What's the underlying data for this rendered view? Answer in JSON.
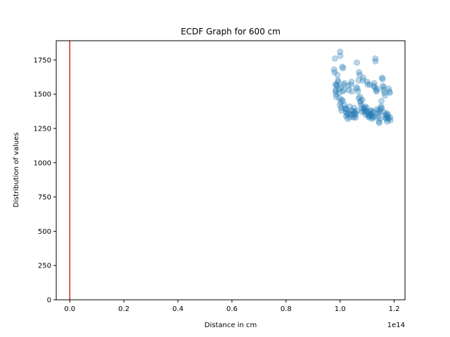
{
  "chart_data": {
    "type": "scatter",
    "title": "ECDF Graph for 600 cm",
    "xlabel": "Distance in cm",
    "ylabel": "Distribution of values",
    "x_offset_label": "1e14",
    "xlim": [
      -0.05,
      1.24
    ],
    "ylim": [
      0,
      1890
    ],
    "x_ticks": [
      0.0,
      0.2,
      0.4,
      0.6,
      0.8,
      1.0,
      1.2
    ],
    "x_tick_labels": [
      "0.0",
      "0.2",
      "0.4",
      "0.6",
      "0.8",
      "1.0",
      "1.2"
    ],
    "y_ticks": [
      0,
      250,
      500,
      750,
      1000,
      1250,
      1500,
      1750
    ],
    "y_tick_labels": [
      "0",
      "250",
      "500",
      "750",
      "1000",
      "1250",
      "1500",
      "1750"
    ],
    "grid": false,
    "vline": {
      "x": 0,
      "color": "#d62728"
    },
    "point_color": "#1f77b4",
    "points": [
      [
        0.978,
        1680
      ],
      [
        0.979,
        1660
      ],
      [
        0.981,
        1760
      ],
      [
        0.982,
        1570
      ],
      [
        0.983,
        1520
      ],
      [
        0.985,
        1500
      ],
      [
        0.986,
        1480
      ],
      [
        0.988,
        1560
      ],
      [
        0.99,
        1640
      ],
      [
        0.992,
        1600
      ],
      [
        0.995,
        1540
      ],
      [
        0.997,
        1470
      ],
      [
        0.999,
        1420
      ],
      [
        1.0,
        1810
      ],
      [
        1.001,
        1780
      ],
      [
        1.003,
        1550
      ],
      [
        1.004,
        1400
      ],
      [
        1.005,
        1380
      ],
      [
        1.006,
        1460
      ],
      [
        1.008,
        1700
      ],
      [
        1.009,
        1520
      ],
      [
        1.011,
        1690
      ],
      [
        1.013,
        1570
      ],
      [
        1.015,
        1530
      ],
      [
        1.017,
        1580
      ],
      [
        1.019,
        1400
      ],
      [
        1.021,
        1370
      ],
      [
        1.022,
        1340
      ],
      [
        1.024,
        1390
      ],
      [
        1.026,
        1350
      ],
      [
        1.028,
        1320
      ],
      [
        1.03,
        1560
      ],
      [
        1.032,
        1530
      ],
      [
        1.034,
        1360
      ],
      [
        1.036,
        1330
      ],
      [
        1.038,
        1350
      ],
      [
        1.04,
        1570
      ],
      [
        1.042,
        1590
      ],
      [
        1.044,
        1520
      ],
      [
        1.046,
        1380
      ],
      [
        1.048,
        1340
      ],
      [
        1.05,
        1360
      ],
      [
        1.052,
        1400
      ],
      [
        1.054,
        1370
      ],
      [
        1.056,
        1350
      ],
      [
        1.058,
        1330
      ],
      [
        1.06,
        1550
      ],
      [
        1.062,
        1730
      ],
      [
        1.064,
        1540
      ],
      [
        1.066,
        1520
      ],
      [
        1.068,
        1600
      ],
      [
        1.07,
        1660
      ],
      [
        1.072,
        1640
      ],
      [
        1.074,
        1480
      ],
      [
        1.076,
        1450
      ],
      [
        1.078,
        1420
      ],
      [
        1.08,
        1370
      ],
      [
        1.082,
        1460
      ],
      [
        1.084,
        1600
      ],
      [
        1.086,
        1620
      ],
      [
        1.088,
        1400
      ],
      [
        1.09,
        1390
      ],
      [
        1.092,
        1370
      ],
      [
        1.094,
        1350
      ],
      [
        1.096,
        1380
      ],
      [
        1.098,
        1400
      ],
      [
        1.1,
        1590
      ],
      [
        1.102,
        1570
      ],
      [
        1.104,
        1340
      ],
      [
        1.106,
        1360
      ],
      [
        1.108,
        1330
      ],
      [
        1.11,
        1570
      ],
      [
        1.112,
        1380
      ],
      [
        1.114,
        1350
      ],
      [
        1.116,
        1360
      ],
      [
        1.118,
        1320
      ],
      [
        1.12,
        1340
      ],
      [
        1.122,
        1370
      ],
      [
        1.124,
        1560
      ],
      [
        1.126,
        1580
      ],
      [
        1.128,
        1550
      ],
      [
        1.13,
        1760
      ],
      [
        1.131,
        1740
      ],
      [
        1.133,
        1530
      ],
      [
        1.135,
        1520
      ],
      [
        1.137,
        1540
      ],
      [
        1.139,
        1360
      ],
      [
        1.141,
        1380
      ],
      [
        1.143,
        1300
      ],
      [
        1.145,
        1290
      ],
      [
        1.147,
        1320
      ],
      [
        1.149,
        1390
      ],
      [
        1.151,
        1410
      ],
      [
        1.153,
        1450
      ],
      [
        1.155,
        1620
      ],
      [
        1.157,
        1610
      ],
      [
        1.158,
        1560
      ],
      [
        1.16,
        1530
      ],
      [
        1.162,
        1550
      ],
      [
        1.164,
        1510
      ],
      [
        1.166,
        1490
      ],
      [
        1.168,
        1350
      ],
      [
        1.17,
        1320
      ],
      [
        1.172,
        1340
      ],
      [
        1.174,
        1300
      ],
      [
        1.176,
        1330
      ],
      [
        1.178,
        1350
      ],
      [
        1.18,
        1540
      ],
      [
        1.182,
        1520
      ],
      [
        1.184,
        1510
      ],
      [
        1.185,
        1330
      ],
      [
        1.186,
        1310
      ],
      [
        0.984,
        1530
      ],
      [
        0.987,
        1570
      ],
      [
        0.993,
        1590
      ],
      [
        0.996,
        1510
      ],
      [
        1.002,
        1440
      ],
      [
        1.01,
        1450
      ],
      [
        1.016,
        1420
      ],
      [
        1.02,
        1390
      ],
      [
        1.027,
        1360
      ],
      [
        1.035,
        1410
      ],
      [
        1.043,
        1380
      ],
      [
        1.051,
        1330
      ],
      [
        1.057,
        1360
      ],
      [
        1.063,
        1380
      ],
      [
        1.069,
        1470
      ],
      [
        1.075,
        1440
      ],
      [
        1.081,
        1400
      ],
      [
        1.087,
        1380
      ],
      [
        1.093,
        1410
      ],
      [
        1.099,
        1370
      ],
      [
        1.105,
        1350
      ],
      [
        1.111,
        1340
      ],
      [
        1.117,
        1380
      ],
      [
        1.123,
        1330
      ],
      [
        1.129,
        1340
      ],
      [
        1.136,
        1390
      ],
      [
        1.142,
        1340
      ],
      [
        1.148,
        1370
      ],
      [
        1.154,
        1400
      ],
      [
        1.161,
        1370
      ],
      [
        1.167,
        1330
      ],
      [
        1.173,
        1360
      ],
      [
        1.179,
        1320
      ]
    ]
  }
}
